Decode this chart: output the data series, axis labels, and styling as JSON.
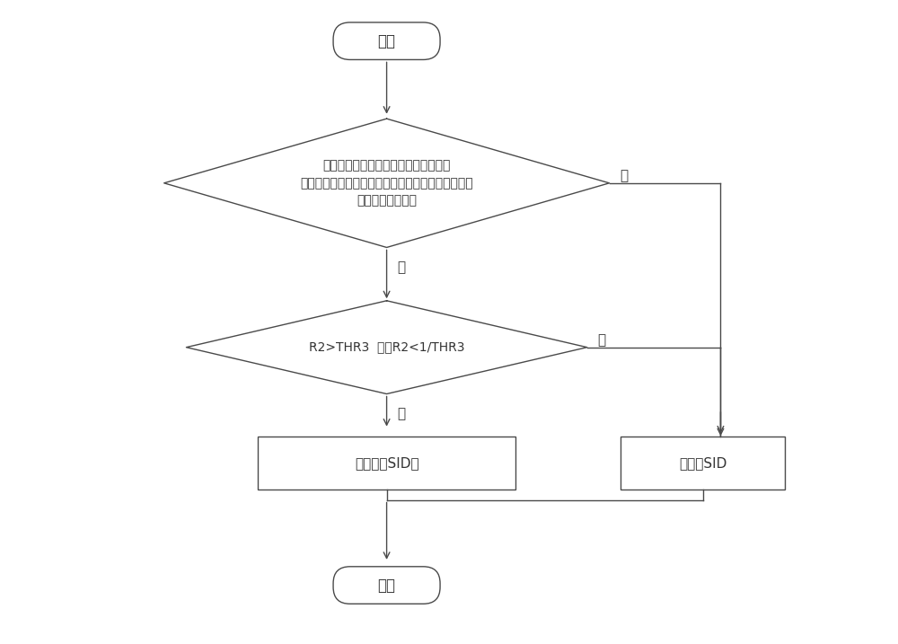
{
  "bg_color": "#ffffff",
  "line_color": "#4a4a4a",
  "text_color": "#333333",
  "fig_width": 10.0,
  "fig_height": 7.17,
  "start_label": "开始",
  "end_label": "结束",
  "diamond1_lines": [
    "当前语音信号帧的频谱能量的绝对值和",
    "上一静音插入描述帧的频谱能量的绝对值中至少一个",
    "大于单帧能量门限"
  ],
  "diamond2_label": "R2>THR3  或者R2<1/THR3",
  "box1_label": "发送一个SID帧",
  "box2_label": "不发送SID",
  "yes_label": "是",
  "no_label": "否"
}
